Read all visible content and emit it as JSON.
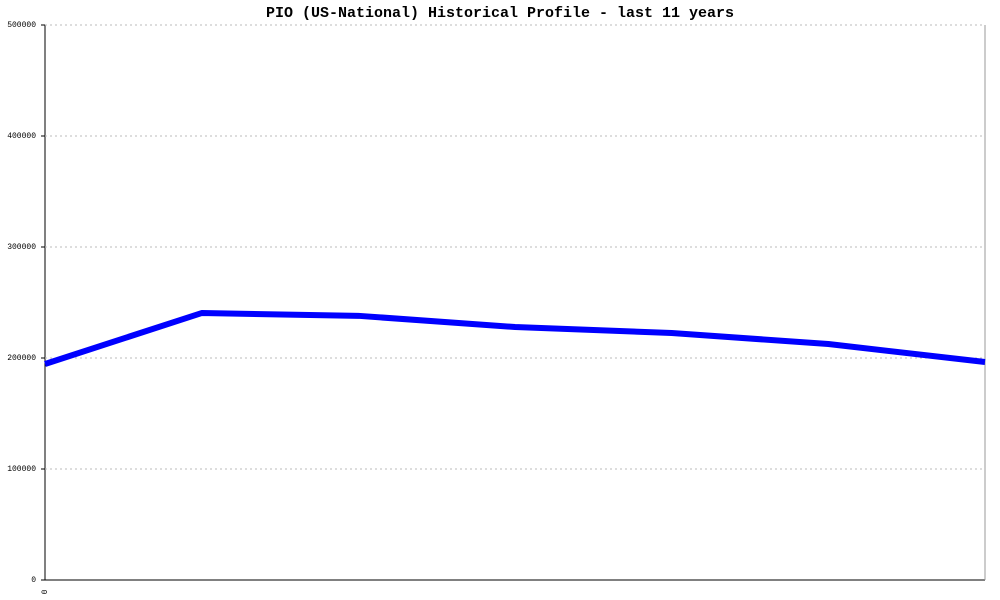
{
  "chart_data": {
    "type": "line",
    "title": "PIO (US-National) Historical Profile - last 11 years",
    "categories": [
      "0",
      null,
      null,
      null,
      null,
      null,
      null
    ],
    "series": [
      {
        "name": "PIO",
        "color": "#0000ff",
        "values": [
          194600,
          240500,
          238000,
          227900,
          222500,
          212600,
          196400
        ]
      }
    ],
    "ylim": [
      0,
      500000
    ],
    "yticks": [
      0,
      100000,
      200000,
      300000,
      400000,
      500000
    ],
    "grid": true
  }
}
